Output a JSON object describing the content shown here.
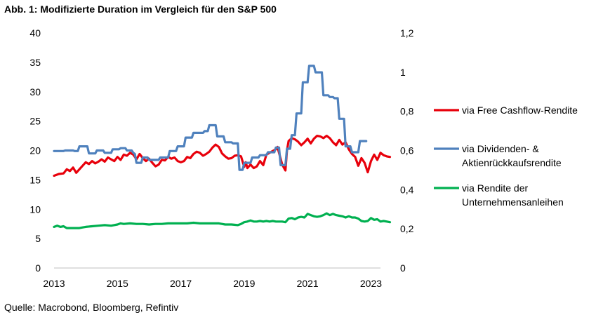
{
  "title": "Abb. 1: Modifizierte Duration im Vergleich für den S&P 500",
  "source": "Quelle: Macrobond, Bloomberg, Refintiv",
  "chart_data": {
    "type": "line",
    "title": "Abb. 1: Modifizierte Duration im Vergleich für den S&P 500",
    "xlim": [
      2013.0,
      2023.3
    ],
    "ylim_left": [
      0,
      40
    ],
    "ylim_right": [
      0,
      1.2
    ],
    "x_ticks": [
      "2013",
      "2015",
      "2017",
      "2019",
      "2021",
      "2023"
    ],
    "y_left_ticks": [
      "0",
      "5",
      "10",
      "15",
      "20",
      "25",
      "30",
      "35",
      "40"
    ],
    "y_right_ticks": [
      "0",
      "0,2",
      "0,4",
      "0,6",
      "0,8",
      "1",
      "1,2"
    ],
    "series": [
      {
        "name": "via Free Cashflow-Rendite",
        "legend_lines": [
          "via Free Cashflow-Rendite"
        ],
        "axis": "left",
        "color": "#e8000b",
        "points": [
          [
            2013.0,
            15.7
          ],
          [
            2013.15,
            16.0
          ],
          [
            2013.3,
            16.1
          ],
          [
            2013.4,
            16.8
          ],
          [
            2013.5,
            16.5
          ],
          [
            2013.6,
            17.1
          ],
          [
            2013.7,
            16.2
          ],
          [
            2013.8,
            16.8
          ],
          [
            2013.9,
            17.4
          ],
          [
            2014.0,
            18.0
          ],
          [
            2014.1,
            17.7
          ],
          [
            2014.2,
            18.2
          ],
          [
            2014.3,
            17.8
          ],
          [
            2014.4,
            18.1
          ],
          [
            2014.5,
            18.5
          ],
          [
            2014.6,
            18.1
          ],
          [
            2014.7,
            18.8
          ],
          [
            2014.8,
            18.5
          ],
          [
            2014.9,
            18.2
          ],
          [
            2015.0,
            18.9
          ],
          [
            2015.1,
            18.4
          ],
          [
            2015.2,
            19.3
          ],
          [
            2015.3,
            19.1
          ],
          [
            2015.4,
            19.6
          ],
          [
            2015.5,
            19.3
          ],
          [
            2015.6,
            18.5
          ],
          [
            2015.7,
            19.4
          ],
          [
            2015.8,
            18.7
          ],
          [
            2015.9,
            18.2
          ],
          [
            2016.0,
            18.6
          ],
          [
            2016.1,
            17.9
          ],
          [
            2016.2,
            17.3
          ],
          [
            2016.3,
            17.6
          ],
          [
            2016.4,
            18.4
          ],
          [
            2016.5,
            18.3
          ],
          [
            2016.6,
            18.9
          ],
          [
            2016.7,
            18.6
          ],
          [
            2016.8,
            18.8
          ],
          [
            2016.9,
            18.2
          ],
          [
            2017.0,
            18.0
          ],
          [
            2017.1,
            18.2
          ],
          [
            2017.2,
            18.9
          ],
          [
            2017.3,
            18.7
          ],
          [
            2017.4,
            19.4
          ],
          [
            2017.5,
            19.8
          ],
          [
            2017.6,
            19.6
          ],
          [
            2017.7,
            19.1
          ],
          [
            2017.8,
            19.4
          ],
          [
            2017.9,
            19.8
          ],
          [
            2018.0,
            20.5
          ],
          [
            2018.1,
            21.0
          ],
          [
            2018.2,
            20.6
          ],
          [
            2018.3,
            19.5
          ],
          [
            2018.4,
            19.0
          ],
          [
            2018.5,
            18.6
          ],
          [
            2018.6,
            18.7
          ],
          [
            2018.7,
            19.1
          ],
          [
            2018.8,
            19.2
          ],
          [
            2018.9,
            19.0
          ],
          [
            2019.0,
            17.2
          ],
          [
            2019.05,
            18.0
          ],
          [
            2019.1,
            17.0
          ],
          [
            2019.2,
            17.6
          ],
          [
            2019.3,
            17.0
          ],
          [
            2019.4,
            17.3
          ],
          [
            2019.5,
            18.2
          ],
          [
            2019.6,
            17.5
          ],
          [
            2019.7,
            19.3
          ],
          [
            2019.8,
            19.6
          ],
          [
            2019.9,
            19.9
          ],
          [
            2020.0,
            20.2
          ],
          [
            2020.05,
            20.6
          ],
          [
            2020.1,
            19.6
          ],
          [
            2020.2,
            17.6
          ],
          [
            2020.3,
            16.6
          ],
          [
            2020.35,
            20.0
          ],
          [
            2020.4,
            21.6
          ],
          [
            2020.5,
            22.1
          ],
          [
            2020.6,
            21.9
          ],
          [
            2020.7,
            21.5
          ],
          [
            2020.8,
            20.9
          ],
          [
            2020.9,
            21.4
          ],
          [
            2021.0,
            22.0
          ],
          [
            2021.1,
            21.2
          ],
          [
            2021.2,
            22.0
          ],
          [
            2021.3,
            22.5
          ],
          [
            2021.4,
            22.4
          ],
          [
            2021.5,
            22.1
          ],
          [
            2021.6,
            22.5
          ],
          [
            2021.7,
            22.1
          ],
          [
            2021.8,
            21.4
          ],
          [
            2021.9,
            20.9
          ],
          [
            2022.0,
            21.8
          ],
          [
            2022.1,
            21.0
          ],
          [
            2022.2,
            21.4
          ],
          [
            2022.3,
            20.2
          ],
          [
            2022.4,
            19.4
          ],
          [
            2022.5,
            18.9
          ],
          [
            2022.6,
            17.4
          ],
          [
            2022.7,
            18.7
          ],
          [
            2022.8,
            17.9
          ],
          [
            2022.9,
            16.3
          ],
          [
            2023.0,
            18.2
          ],
          [
            2023.1,
            19.3
          ],
          [
            2023.2,
            18.4
          ],
          [
            2023.3,
            19.6
          ],
          [
            2023.4,
            19.2
          ],
          [
            2023.5,
            19.0
          ],
          [
            2023.6,
            18.9
          ]
        ]
      },
      {
        "name": "via Dividenden- & Aktienrückkaufsrendite",
        "legend_lines": [
          "via Dividenden- &",
          "Aktienrückkaufsrendite"
        ],
        "axis": "left",
        "color": "#4f81bd",
        "points": [
          [
            2013.0,
            19.9
          ],
          [
            2013.3,
            19.9
          ],
          [
            2013.35,
            20.0
          ],
          [
            2013.6,
            20.0
          ],
          [
            2013.65,
            19.9
          ],
          [
            2013.75,
            19.9
          ],
          [
            2013.8,
            20.7
          ],
          [
            2014.05,
            20.7
          ],
          [
            2014.1,
            19.5
          ],
          [
            2014.3,
            19.5
          ],
          [
            2014.35,
            20.0
          ],
          [
            2014.55,
            20.0
          ],
          [
            2014.6,
            19.6
          ],
          [
            2014.8,
            19.6
          ],
          [
            2014.85,
            20.2
          ],
          [
            2015.05,
            20.2
          ],
          [
            2015.1,
            20.4
          ],
          [
            2015.25,
            20.4
          ],
          [
            2015.3,
            20.0
          ],
          [
            2015.45,
            20.0
          ],
          [
            2015.5,
            19.6
          ],
          [
            2015.55,
            19.4
          ],
          [
            2015.6,
            17.9
          ],
          [
            2015.75,
            17.9
          ],
          [
            2015.8,
            18.8
          ],
          [
            2015.95,
            18.8
          ],
          [
            2016.0,
            18.4
          ],
          [
            2016.3,
            18.4
          ],
          [
            2016.35,
            18.8
          ],
          [
            2016.6,
            18.8
          ],
          [
            2016.65,
            19.9
          ],
          [
            2016.85,
            19.9
          ],
          [
            2016.9,
            20.7
          ],
          [
            2017.1,
            20.7
          ],
          [
            2017.15,
            22.2
          ],
          [
            2017.35,
            22.2
          ],
          [
            2017.4,
            23.0
          ],
          [
            2017.7,
            23.0
          ],
          [
            2017.75,
            23.3
          ],
          [
            2017.85,
            23.3
          ],
          [
            2017.9,
            24.3
          ],
          [
            2018.1,
            24.3
          ],
          [
            2018.15,
            22.4
          ],
          [
            2018.35,
            22.4
          ],
          [
            2018.4,
            21.4
          ],
          [
            2018.6,
            21.4
          ],
          [
            2018.65,
            21.2
          ],
          [
            2018.8,
            21.2
          ],
          [
            2018.85,
            16.7
          ],
          [
            2018.95,
            16.7
          ],
          [
            2019.0,
            17.9
          ],
          [
            2019.2,
            17.9
          ],
          [
            2019.25,
            18.8
          ],
          [
            2019.45,
            18.8
          ],
          [
            2019.5,
            19.2
          ],
          [
            2019.7,
            19.2
          ],
          [
            2019.75,
            19.7
          ],
          [
            2019.95,
            19.7
          ],
          [
            2020.0,
            20.5
          ],
          [
            2020.1,
            20.5
          ],
          [
            2020.15,
            17.5
          ],
          [
            2020.3,
            17.5
          ],
          [
            2020.35,
            20.3
          ],
          [
            2020.45,
            20.3
          ],
          [
            2020.5,
            22.6
          ],
          [
            2020.6,
            22.6
          ],
          [
            2020.65,
            26.3
          ],
          [
            2020.8,
            26.3
          ],
          [
            2020.85,
            31.6
          ],
          [
            2021.0,
            31.6
          ],
          [
            2021.05,
            34.4
          ],
          [
            2021.2,
            34.4
          ],
          [
            2021.25,
            33.3
          ],
          [
            2021.45,
            33.3
          ],
          [
            2021.5,
            29.4
          ],
          [
            2021.65,
            29.4
          ],
          [
            2021.7,
            29.1
          ],
          [
            2021.8,
            29.1
          ],
          [
            2021.85,
            28.9
          ],
          [
            2021.95,
            28.9
          ],
          [
            2022.0,
            25.4
          ],
          [
            2022.15,
            25.4
          ],
          [
            2022.2,
            20.7
          ],
          [
            2022.35,
            20.7
          ],
          [
            2022.4,
            19.7
          ],
          [
            2022.6,
            19.7
          ],
          [
            2022.65,
            21.6
          ],
          [
            2022.85,
            21.6
          ]
        ]
      },
      {
        "name": "via Rendite der Unternehmensanleihen",
        "legend_lines": [
          "via Rendite der",
          "Unternehmensanleihen"
        ],
        "axis": "left",
        "color": "#00b050",
        "points": [
          [
            2013.0,
            7.0
          ],
          [
            2013.1,
            7.2
          ],
          [
            2013.2,
            7.0
          ],
          [
            2013.3,
            7.1
          ],
          [
            2013.4,
            6.8
          ],
          [
            2013.6,
            6.8
          ],
          [
            2013.8,
            6.8
          ],
          [
            2013.9,
            6.9
          ],
          [
            2014.0,
            7.0
          ],
          [
            2014.2,
            7.1
          ],
          [
            2014.4,
            7.2
          ],
          [
            2014.6,
            7.3
          ],
          [
            2014.8,
            7.2
          ],
          [
            2015.0,
            7.4
          ],
          [
            2015.1,
            7.6
          ],
          [
            2015.2,
            7.5
          ],
          [
            2015.4,
            7.6
          ],
          [
            2015.6,
            7.5
          ],
          [
            2015.8,
            7.5
          ],
          [
            2016.0,
            7.4
          ],
          [
            2016.2,
            7.5
          ],
          [
            2016.4,
            7.5
          ],
          [
            2016.6,
            7.6
          ],
          [
            2016.8,
            7.6
          ],
          [
            2017.0,
            7.6
          ],
          [
            2017.2,
            7.6
          ],
          [
            2017.4,
            7.7
          ],
          [
            2017.6,
            7.6
          ],
          [
            2017.8,
            7.6
          ],
          [
            2018.0,
            7.6
          ],
          [
            2018.2,
            7.6
          ],
          [
            2018.4,
            7.4
          ],
          [
            2018.6,
            7.4
          ],
          [
            2018.8,
            7.3
          ],
          [
            2018.9,
            7.5
          ],
          [
            2019.0,
            7.8
          ],
          [
            2019.1,
            7.9
          ],
          [
            2019.2,
            8.1
          ],
          [
            2019.3,
            7.9
          ],
          [
            2019.4,
            7.9
          ],
          [
            2019.5,
            8.0
          ],
          [
            2019.6,
            7.9
          ],
          [
            2019.7,
            8.0
          ],
          [
            2019.8,
            7.9
          ],
          [
            2019.9,
            8.0
          ],
          [
            2020.0,
            7.9
          ],
          [
            2020.2,
            7.9
          ],
          [
            2020.3,
            7.8
          ],
          [
            2020.4,
            8.4
          ],
          [
            2020.5,
            8.5
          ],
          [
            2020.6,
            8.3
          ],
          [
            2020.7,
            8.6
          ],
          [
            2020.8,
            8.7
          ],
          [
            2020.9,
            8.6
          ],
          [
            2021.0,
            9.2
          ],
          [
            2021.1,
            9.0
          ],
          [
            2021.2,
            8.8
          ],
          [
            2021.3,
            8.7
          ],
          [
            2021.4,
            8.8
          ],
          [
            2021.5,
            9.0
          ],
          [
            2021.6,
            9.3
          ],
          [
            2021.7,
            9.0
          ],
          [
            2021.8,
            9.2
          ],
          [
            2021.9,
            9.0
          ],
          [
            2022.0,
            8.9
          ],
          [
            2022.1,
            8.8
          ],
          [
            2022.2,
            8.6
          ],
          [
            2022.3,
            8.8
          ],
          [
            2022.4,
            8.6
          ],
          [
            2022.5,
            8.6
          ],
          [
            2022.6,
            8.4
          ],
          [
            2022.7,
            8.0
          ],
          [
            2022.8,
            7.9
          ],
          [
            2022.9,
            8.0
          ],
          [
            2023.0,
            8.5
          ],
          [
            2023.1,
            8.2
          ],
          [
            2023.2,
            8.3
          ],
          [
            2023.3,
            7.9
          ],
          [
            2023.4,
            8.0
          ],
          [
            2023.5,
            7.9
          ],
          [
            2023.6,
            7.8
          ]
        ]
      }
    ]
  }
}
